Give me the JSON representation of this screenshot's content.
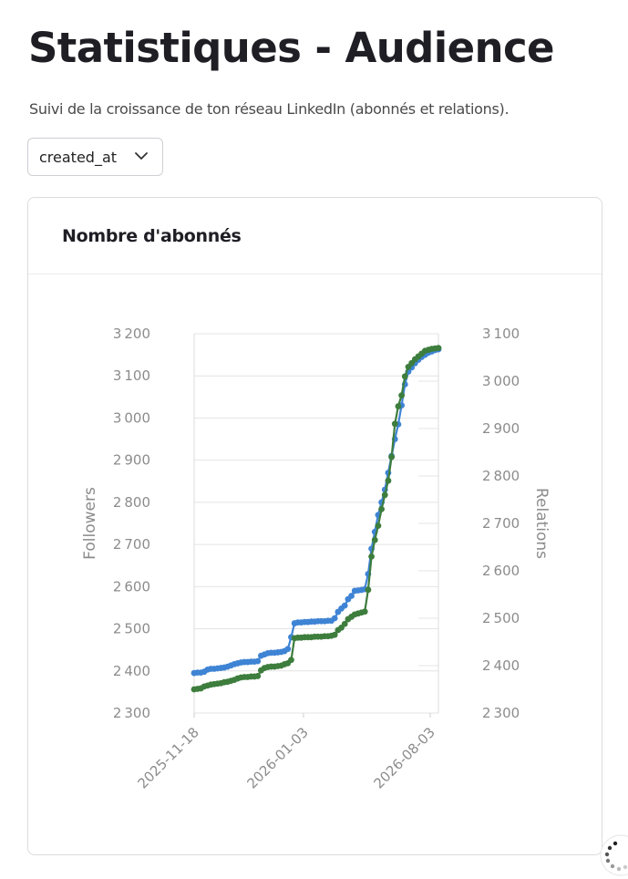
{
  "page": {
    "title": "Statistiques - Audience",
    "subtitle": "Suivi de la croissance de ton réseau LinkedIn (abonnés et relations)."
  },
  "selector": {
    "value": "created_at",
    "icon": "chevron-down-icon"
  },
  "card": {
    "title": "Nombre d'abonnés"
  },
  "chart_data": {
    "type": "line",
    "xlabel": "",
    "x_ticks": [
      "2025-11-18",
      "2026-01-03",
      "2026-08-03"
    ],
    "y_left": {
      "label": "Followers",
      "lim": [
        2300,
        3200
      ],
      "ticks": [
        2300,
        2400,
        2500,
        2600,
        2700,
        2800,
        2900,
        3000,
        3100,
        3200
      ]
    },
    "y_right": {
      "label": "Relations",
      "lim": [
        2300,
        3100
      ],
      "ticks": [
        2300,
        2400,
        2500,
        2600,
        2700,
        2800,
        2900,
        3000,
        3100
      ]
    },
    "grid": true,
    "series": [
      {
        "axis": "left",
        "color": "#3f84d4",
        "values": [
          2395,
          2396,
          2396,
          2398,
          2403,
          2405,
          2405,
          2406,
          2407,
          2408,
          2410,
          2413,
          2416,
          2418,
          2420,
          2421,
          2421,
          2422,
          2422,
          2423,
          2436,
          2439,
          2442,
          2443,
          2443,
          2444,
          2445,
          2447,
          2452,
          2480,
          2513,
          2515,
          2515,
          2516,
          2516,
          2517,
          2517,
          2518,
          2518,
          2518,
          2519,
          2519,
          2525,
          2540,
          2548,
          2555,
          2570,
          2578,
          2590,
          2591,
          2592,
          2594,
          2630,
          2690,
          2730,
          2770,
          2800,
          2830,
          2870,
          2910,
          2950,
          2985,
          3030,
          3080,
          3110,
          3120,
          3130,
          3138,
          3145,
          3150,
          3155,
          3158,
          3161,
          3163
        ]
      },
      {
        "axis": "right",
        "color": "#3d7d3d",
        "values": [
          2350,
          2351,
          2352,
          2356,
          2358,
          2360,
          2361,
          2362,
          2363,
          2365,
          2366,
          2368,
          2370,
          2373,
          2375,
          2376,
          2376,
          2377,
          2377,
          2378,
          2390,
          2395,
          2397,
          2398,
          2398,
          2399,
          2400,
          2403,
          2405,
          2412,
          2458,
          2459,
          2459,
          2460,
          2460,
          2460,
          2461,
          2461,
          2461,
          2462,
          2462,
          2463,
          2465,
          2475,
          2480,
          2488,
          2498,
          2503,
          2508,
          2510,
          2512,
          2514,
          2560,
          2630,
          2665,
          2695,
          2730,
          2760,
          2790,
          2840,
          2910,
          2947,
          2970,
          3010,
          3030,
          3038,
          3046,
          3052,
          3058,
          3064,
          3066,
          3068,
          3069,
          3070
        ]
      }
    ]
  }
}
